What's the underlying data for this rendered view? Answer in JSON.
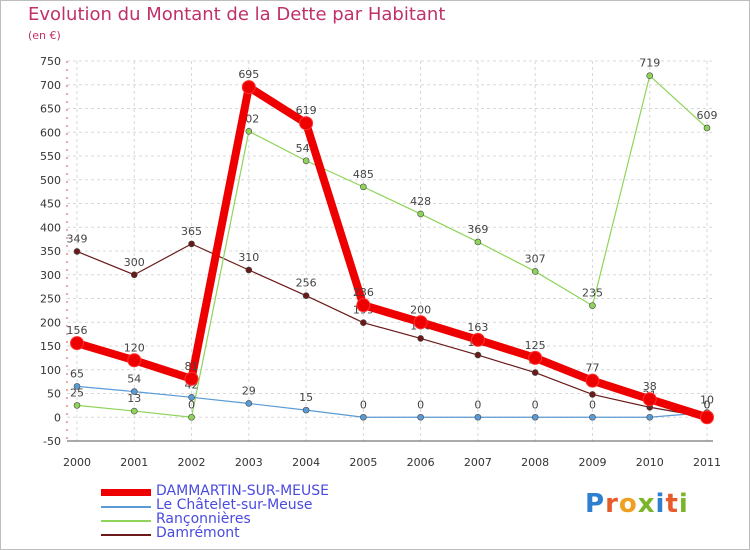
{
  "title": "Evolution du Montant de la Dette par Habitant",
  "subtitle": "(en €)",
  "logo": {
    "text": "Proxiti",
    "colors": [
      "#2f7fd0",
      "#e85a2a",
      "#f0a020",
      "#7ab52a",
      "#2f7fd0",
      "#e85a2a",
      "#7ab52a"
    ]
  },
  "chart_data": {
    "type": "line",
    "title": "Evolution du Montant de la Dette par Habitant",
    "ylabel": "(en €)",
    "x": [
      "2000",
      "2001",
      "2002",
      "2003",
      "2004",
      "2005",
      "2006",
      "2007",
      "2008",
      "2009",
      "2010",
      "2011"
    ],
    "ylim": [
      -50,
      750
    ],
    "yticks": [
      -50,
      0,
      50,
      100,
      150,
      200,
      250,
      300,
      350,
      400,
      450,
      500,
      550,
      600,
      650,
      700,
      750
    ],
    "grid": true,
    "series": [
      {
        "name": "Damrémont",
        "color": "#6b1a1a",
        "values": [
          349,
          300,
          365,
          310,
          256,
          199,
          166,
          131,
          94,
          48,
          21,
          0
        ]
      },
      {
        "name": "Rançonnières",
        "color": "#8fd45a",
        "values": [
          25,
          13,
          0,
          602,
          540,
          485,
          428,
          369,
          307,
          235,
          719,
          609
        ]
      },
      {
        "name": "Le Châtelet-sur-Meuse",
        "color": "#5b9bd5",
        "values": [
          65,
          54,
          42,
          29,
          15,
          0,
          0,
          0,
          0,
          0,
          0,
          10
        ]
      },
      {
        "name": "DAMMARTIN-SUR-MEUSE",
        "color": "#ee0000",
        "values": [
          156,
          120,
          81,
          695,
          619,
          236,
          200,
          163,
          125,
          77,
          38,
          0
        ]
      }
    ],
    "legend_order": [
      "DAMMARTIN-SUR-MEUSE",
      "Le Châtelet-sur-Meuse",
      "Rançonnières",
      "Damrémont"
    ]
  }
}
